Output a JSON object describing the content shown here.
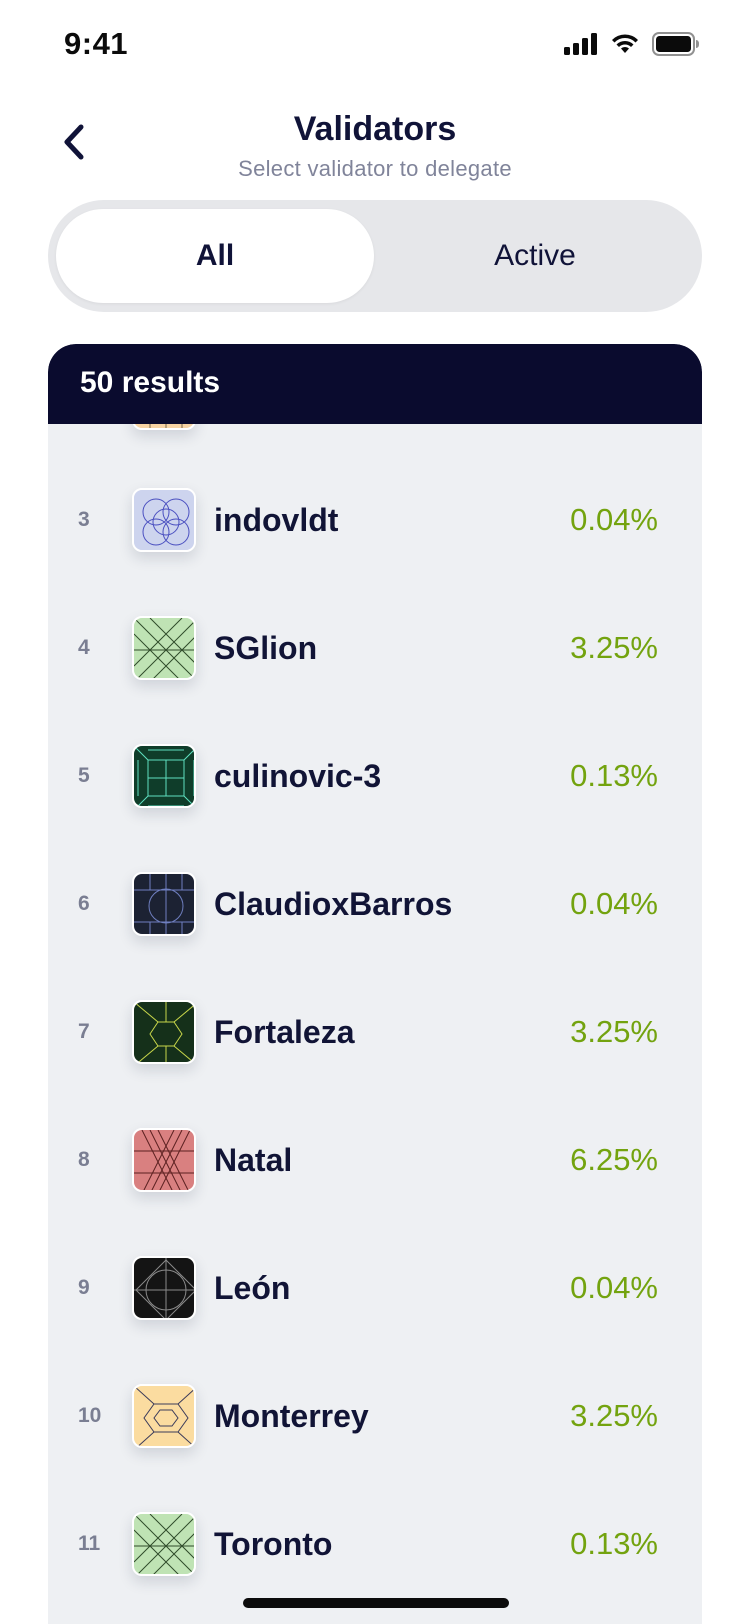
{
  "status_bar": {
    "time": "9:41",
    "icons": [
      "signal-icon",
      "wifi-icon",
      "battery-icon"
    ]
  },
  "nav": {
    "title": "Validators",
    "subtitle": "Select validator to delegate",
    "back_icon": "chevron-left-icon"
  },
  "segments": [
    {
      "label": "All",
      "selected": true
    },
    {
      "label": "Active",
      "selected": false
    }
  ],
  "results": {
    "count_label": "50 results",
    "items": [
      {
        "rank": "",
        "name": "",
        "percent": "",
        "avatar_bg": "#f7d3a3",
        "avatar_line": "#7a6a4a"
      },
      {
        "rank": "3",
        "name": "indovldt",
        "percent": "0.04%",
        "avatar_bg": "#cdd4ee",
        "avatar_line": "#4a4fc0"
      },
      {
        "rank": "4",
        "name": "SGlion",
        "percent": "3.25%",
        "avatar_bg": "#bfe3b4",
        "avatar_line": "#2f4b2a"
      },
      {
        "rank": "5",
        "name": "culinovic-3",
        "percent": "0.13%",
        "avatar_bg": "#0f3d2a",
        "avatar_line": "#5fe0c0"
      },
      {
        "rank": "6",
        "name": "ClaudioxBarros",
        "percent": "0.04%",
        "avatar_bg": "#1c2233",
        "avatar_line": "#6f7fc0"
      },
      {
        "rank": "7",
        "name": "Fortaleza",
        "percent": "3.25%",
        "avatar_bg": "#15301a",
        "avatar_line": "#c8d64a"
      },
      {
        "rank": "8",
        "name": "Natal",
        "percent": "6.25%",
        "avatar_bg": "#d98080",
        "avatar_line": "#5a1f1f"
      },
      {
        "rank": "9",
        "name": "León",
        "percent": "0.04%",
        "avatar_bg": "#141414",
        "avatar_line": "#8a8a8a"
      },
      {
        "rank": "10",
        "name": "Monterrey",
        "percent": "3.25%",
        "avatar_bg": "#fbdca0",
        "avatar_line": "#3b3b5a"
      },
      {
        "rank": "11",
        "name": "Toronto",
        "percent": "0.13%",
        "avatar_bg": "#bfe3b4",
        "avatar_line": "#2f4b2a"
      }
    ]
  },
  "colors": {
    "percent": "#73a30f",
    "header_bg": "#0a0b2e",
    "list_bg": "#eef0f3",
    "title": "#101338"
  }
}
